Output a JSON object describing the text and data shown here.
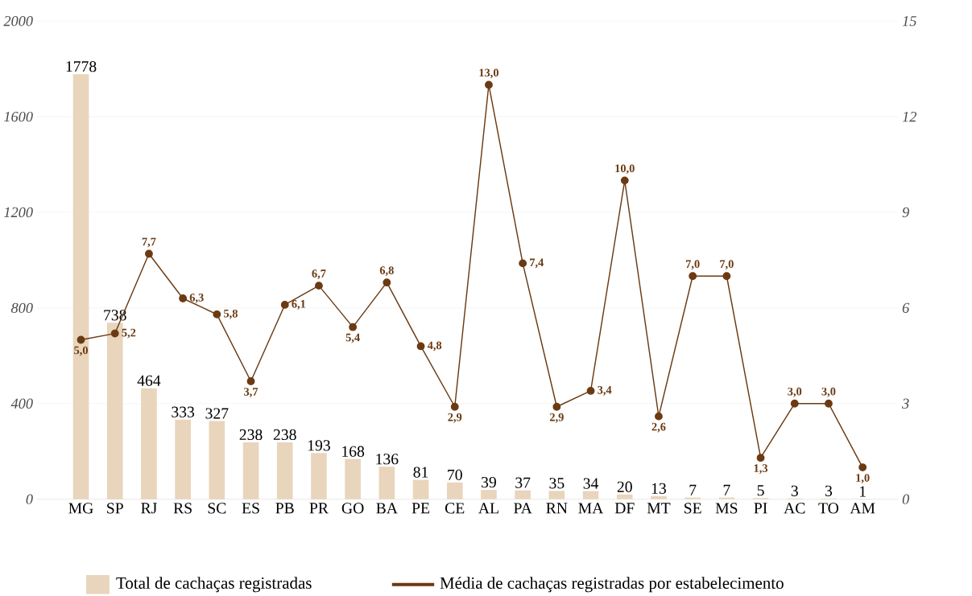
{
  "chart_data": {
    "type": "bar",
    "categories": [
      "MG",
      "SP",
      "RJ",
      "RS",
      "SC",
      "ES",
      "PB",
      "PR",
      "GO",
      "BA",
      "PE",
      "CE",
      "AL",
      "PA",
      "RN",
      "MA",
      "DF",
      "MT",
      "SE",
      "MS",
      "PI",
      "AC",
      "TO",
      "AM"
    ],
    "series": [
      {
        "name": "Total de cachaças registradas",
        "color": "#e8d5bc",
        "values": [
          1778,
          738,
          464,
          333,
          327,
          238,
          238,
          193,
          168,
          136,
          81,
          70,
          39,
          37,
          35,
          34,
          20,
          13,
          7,
          7,
          5,
          3,
          3,
          1
        ]
      },
      {
        "name": "Média de cachaças registradas por estabelecimento",
        "type": "line",
        "axis": "y2",
        "color": "#6b3a12",
        "marker": "circle",
        "values": [
          5.0,
          5.2,
          7.7,
          6.3,
          5.8,
          3.7,
          6.1,
          6.7,
          5.4,
          6.8,
          4.8,
          2.9,
          13.0,
          7.4,
          2.9,
          3.4,
          10.0,
          2.6,
          7.0,
          7.0,
          1.3,
          3.0,
          3.0,
          1.0
        ],
        "value_labels": [
          "5,0",
          "5,2",
          "7,7",
          "6,3",
          "5,8",
          "3,7",
          "6,1",
          "6,7",
          "5,4",
          "6,8",
          "4,8",
          "2,9",
          "13,0",
          "7,4",
          "2,9",
          "3,4",
          "10,0",
          "2,6",
          "7,0",
          "7,0",
          "1,3",
          "3,0",
          "3,0",
          "1,0"
        ]
      }
    ],
    "data_labels": true,
    "ylim": [
      0,
      2000
    ],
    "yticks": [
      0,
      400,
      800,
      1200,
      1600,
      2000
    ],
    "y2lim": [
      0,
      15
    ],
    "y2ticks": [
      0,
      3,
      6,
      9,
      12,
      15
    ],
    "grid": "y",
    "legend": "bottom"
  }
}
